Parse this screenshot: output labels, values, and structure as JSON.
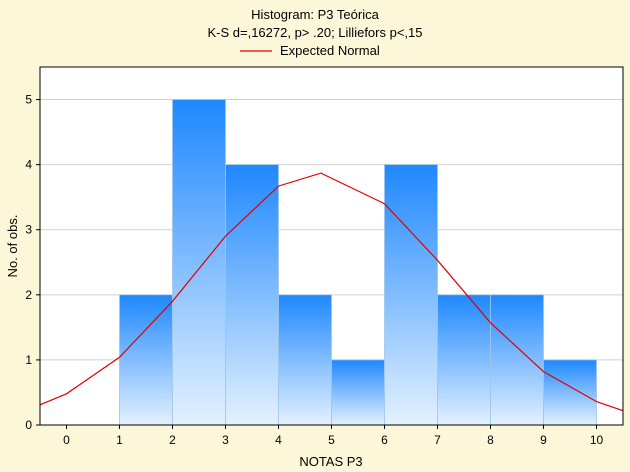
{
  "chart_data": {
    "type": "bar",
    "title": "Histogram: P3 Teórica",
    "subtitle": "K-S d=,16272, p> .20; Lilliefors p<,15",
    "legend": [
      "Expected Normal"
    ],
    "legend_placement": "top-center",
    "xlabel": "NOTAS P3",
    "ylabel": "No. of obs.",
    "xlim": [
      -0.5,
      10.5
    ],
    "ylim": [
      0,
      5.5
    ],
    "x_ticks": [
      "0",
      "1",
      "2",
      "3",
      "4",
      "5",
      "6",
      "7",
      "8",
      "9",
      "10"
    ],
    "y_ticks": [
      "0",
      "1",
      "2",
      "3",
      "4",
      "5"
    ],
    "grid": true,
    "bins": [
      {
        "from": 1,
        "to": 2,
        "count": 2
      },
      {
        "from": 2,
        "to": 3,
        "count": 5
      },
      {
        "from": 3,
        "to": 4,
        "count": 4
      },
      {
        "from": 4,
        "to": 5,
        "count": 2
      },
      {
        "from": 5,
        "to": 6,
        "count": 1
      },
      {
        "from": 6,
        "to": 7,
        "count": 4
      },
      {
        "from": 7,
        "to": 8,
        "count": 2
      },
      {
        "from": 8,
        "to": 9,
        "count": 2
      },
      {
        "from": 9,
        "to": 10,
        "count": 1
      }
    ],
    "expected_normal": {
      "x": [
        -0.5,
        0,
        1,
        2,
        3,
        4,
        4.8,
        6,
        7,
        8,
        9,
        10,
        10.5
      ],
      "y": [
        0.31,
        0.48,
        1.04,
        1.9,
        2.9,
        3.67,
        3.87,
        3.4,
        2.53,
        1.57,
        0.82,
        0.36,
        0.22
      ]
    },
    "colors": {
      "bar_top": "#1e88ff",
      "bar_bottom": "#e4f1ff",
      "curve": "#e00000",
      "background": "#fdf7d9",
      "plot_background": "#ffffff"
    }
  }
}
